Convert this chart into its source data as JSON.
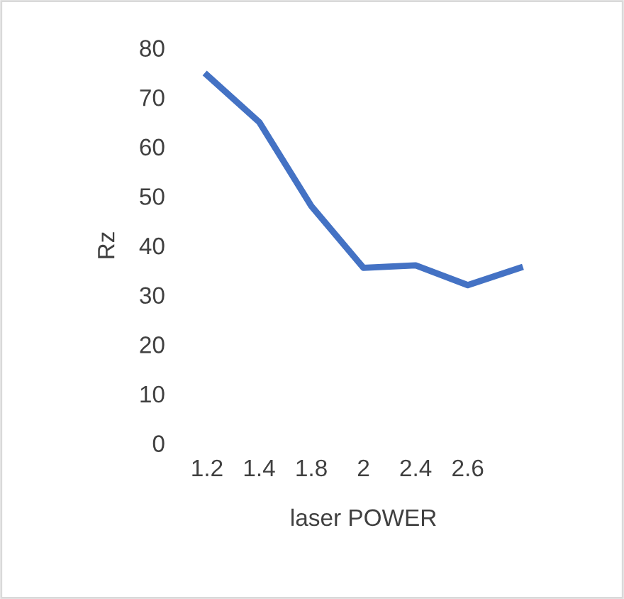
{
  "chart_data": {
    "type": "line",
    "xlabel": "laser POWER",
    "ylabel": "Rz",
    "categories": [
      "1.2",
      "1.4",
      "1.8",
      "2",
      "2.4",
      "2.6",
      null
    ],
    "series": [
      {
        "color": "#4472c4",
        "values": [
          74.5,
          65,
          48,
          35.5,
          36,
          32,
          35.5
        ]
      }
    ],
    "ylim": [
      0,
      80
    ],
    "yticks": [
      0,
      10,
      20,
      30,
      40,
      50,
      60,
      70,
      80
    ],
    "grid": false,
    "legend": false,
    "marker": "none",
    "line_style": "solid"
  }
}
